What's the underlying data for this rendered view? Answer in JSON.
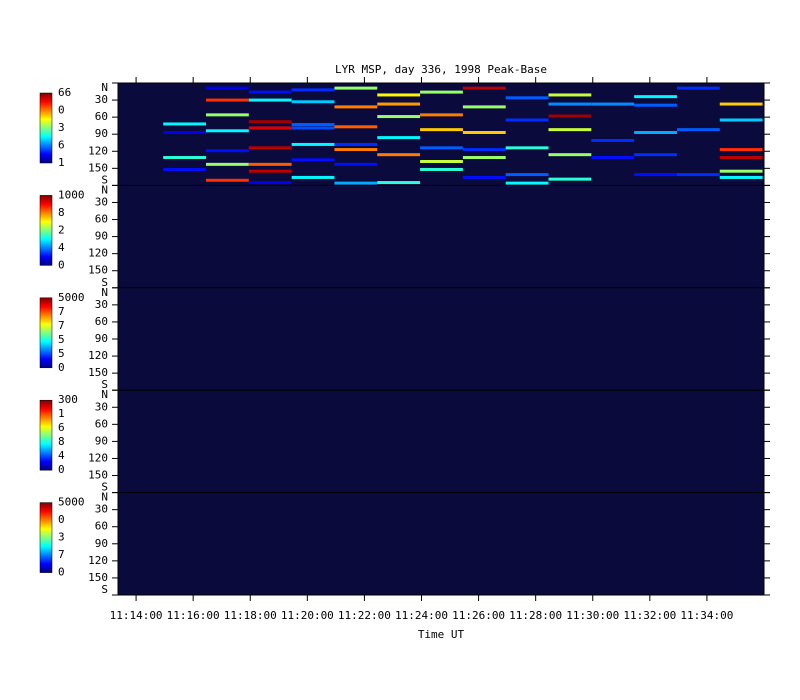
{
  "chart_data": {
    "type": "heatmap",
    "title": "LYR MSP, day 336, 1998 Peak-Base",
    "xlabel": "Time UT",
    "xlim": [
      40402,
      41760
    ],
    "xticks": [
      {
        "value": 40440,
        "label": "11:14:00"
      },
      {
        "value": 40560,
        "label": "11:16:00"
      },
      {
        "value": 40680,
        "label": "11:18:00"
      },
      {
        "value": 40800,
        "label": "11:20:00"
      },
      {
        "value": 40920,
        "label": "11:22:00"
      },
      {
        "value": 41040,
        "label": "11:24:00"
      },
      {
        "value": 41160,
        "label": "11:26:00"
      },
      {
        "value": 41280,
        "label": "11:28:00"
      },
      {
        "value": 41400,
        "label": "11:30:00"
      },
      {
        "value": 41520,
        "label": "11:32:00"
      },
      {
        "value": 41640,
        "label": "11:34:00"
      }
    ],
    "ylim": [
      0,
      180
    ],
    "yticks": [
      {
        "value": 0,
        "label": "N"
      },
      30,
      60,
      90,
      120,
      150,
      {
        "value": 180,
        "label": "S"
      }
    ],
    "background": "#0b0a3c",
    "panels": [
      {
        "colorbar_labels": [
          "66",
          "0",
          "3",
          "6",
          "1"
        ],
        "clim": [
          1,
          66
        ],
        "scans": [
          {
            "t": 40497,
            "angles": [
              72,
              87,
              131,
              152
            ],
            "values": [
              25,
              8,
              28,
              10
            ]
          },
          {
            "t": 40587,
            "angles": [
              9,
              30,
              56,
              84,
              119,
              143,
              171
            ],
            "values": [
              8,
              55,
              35,
              25,
              10,
              35,
              55
            ]
          },
          {
            "t": 40677,
            "angles": [
              16,
              30,
              68,
              79,
              114,
              143,
              155,
              175
            ],
            "values": [
              10,
              25,
              64,
              60,
              62,
              52,
              62,
              8
            ]
          },
          {
            "t": 40767,
            "angles": [
              12,
              33,
              73,
              79,
              108,
              135,
              166
            ],
            "values": [
              12,
              22,
              15,
              14,
              25,
              10,
              25
            ]
          },
          {
            "t": 40857,
            "angles": [
              9,
              42,
              77,
              108,
              117,
              143,
              176
            ],
            "values": [
              35,
              50,
              52,
              12,
              50,
              10,
              20
            ]
          },
          {
            "t": 40947,
            "angles": [
              21,
              37,
              59,
              96,
              126,
              175
            ],
            "values": [
              42,
              48,
              35,
              25,
              50,
              28
            ]
          },
          {
            "t": 41037,
            "angles": [
              16,
              56,
              82,
              114,
              138,
              152
            ],
            "values": [
              35,
              50,
              45,
              15,
              38,
              28
            ]
          },
          {
            "t": 41127,
            "angles": [
              9,
              42,
              87,
              117,
              131,
              166
            ],
            "values": [
              62,
              35,
              45,
              12,
              35,
              10
            ]
          },
          {
            "t": 41217,
            "angles": [
              26,
              65,
              114,
              161,
              176
            ],
            "values": [
              15,
              12,
              28,
              15,
              25
            ]
          },
          {
            "t": 41307,
            "angles": [
              21,
              37,
              58,
              82,
              126,
              169
            ],
            "values": [
              38,
              18,
              64,
              38,
              35,
              28
            ]
          },
          {
            "t": 41397,
            "angles": [
              37,
              101,
              131
            ],
            "values": [
              18,
              12,
              10
            ]
          },
          {
            "t": 41487,
            "angles": [
              24,
              39,
              87,
              126,
              161
            ],
            "values": [
              25,
              15,
              20,
              12,
              10
            ]
          },
          {
            "t": 41577,
            "angles": [
              9,
              82,
              161
            ],
            "values": [
              12,
              15,
              12
            ]
          },
          {
            "t": 41667,
            "angles": [
              37,
              65,
              117,
              131,
              155,
              166
            ],
            "values": [
              45,
              22,
              55,
              62,
              35,
              25
            ]
          }
        ]
      },
      {
        "colorbar_labels": [
          "1000",
          "8",
          "2",
          "4",
          "0"
        ]
      },
      {
        "colorbar_labels": [
          "5000",
          "7",
          "7",
          "5",
          "5",
          "0"
        ]
      },
      {
        "colorbar_labels": [
          "300",
          "1",
          "6",
          "8",
          "4",
          "0"
        ]
      },
      {
        "colorbar_labels": [
          "5000",
          "0",
          "3",
          "7",
          "0"
        ]
      }
    ]
  }
}
